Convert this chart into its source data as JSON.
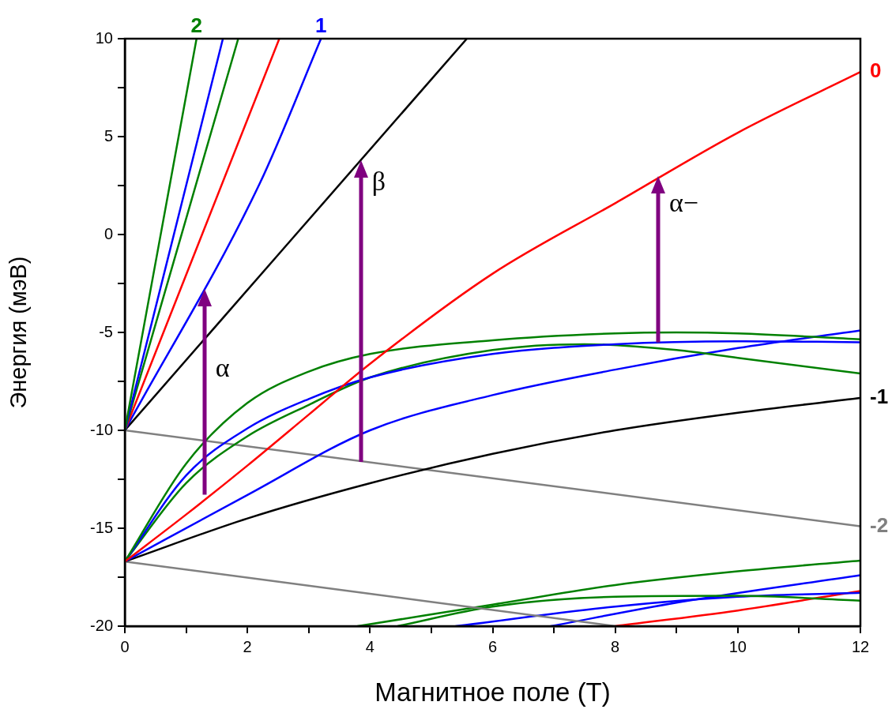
{
  "chart_data": {
    "type": "line",
    "xlabel": "Магнитное поле (Т)",
    "ylabel": "Энергия (мэВ)",
    "xlim": [
      0,
      12
    ],
    "ylim": [
      -20,
      10
    ],
    "xticks": [
      0,
      {
        "value": 1,
        "label": null
      },
      2,
      {
        "value": 3,
        "label": null
      },
      4,
      {
        "value": 5,
        "label": null
      },
      6,
      {
        "value": 7,
        "label": null
      },
      8,
      {
        "value": 9,
        "label": null
      },
      10,
      {
        "value": 11,
        "label": null
      },
      12
    ],
    "yticks": [
      -20,
      {
        "value": -17.5,
        "label": null
      },
      -15,
      {
        "value": -12.5,
        "label": null
      },
      -10,
      {
        "value": -7.5,
        "label": null
      },
      -5,
      {
        "value": -2.5,
        "label": null
      },
      0,
      {
        "value": 2.5,
        "label": null
      },
      5,
      {
        "value": 7.5,
        "label": null
      },
      10
    ],
    "grid": false,
    "legend": false,
    "marker": "none",
    "line_style": "solid",
    "annotations": [
      {
        "text": "α",
        "x": 1.3,
        "y": -2.8
      },
      {
        "text": "β",
        "x": 3.85,
        "y": 3.8
      },
      {
        "text": "α−",
        "x": 8.7,
        "y": 3
      }
    ],
    "series": [
      {
        "name": "2",
        "color": "#008000",
        "x": [
          0,
          1.17
        ],
        "values": [
          -10,
          10
        ]
      },
      {
        "color": "#0000ff",
        "x": [
          0,
          1.6
        ],
        "values": [
          -10,
          10
        ]
      },
      {
        "color": "#008000",
        "x": [
          0,
          1.85
        ],
        "values": [
          -10,
          10
        ]
      },
      {
        "color": "#ff0000",
        "x": [
          0,
          2.52
        ],
        "values": [
          -10,
          10
        ]
      },
      {
        "name": "1",
        "color": "#0000ff",
        "x": [
          0,
          2.2,
          3.2
        ],
        "values": [
          -10,
          2.6,
          10
        ]
      },
      {
        "color": "#000000",
        "x": [
          0,
          5.58
        ],
        "values": [
          -10,
          10
        ]
      },
      {
        "name": "0",
        "color": "#ff0000",
        "x": [
          0,
          1,
          2,
          3,
          4,
          6,
          8,
          10,
          12
        ],
        "values": [
          -16.7,
          -14.3,
          -11.8,
          -9.2,
          -6.6,
          -2,
          1.6,
          5.2,
          8.3
        ]
      },
      {
        "color": "#008000",
        "x": [
          0,
          1,
          2,
          3,
          4,
          6,
          8,
          9,
          10,
          12
        ],
        "values": [
          -16.7,
          -11.7,
          -8.6,
          -7,
          -6.1,
          -5.4,
          -5.05,
          -5,
          -5.05,
          -5.35
        ]
      },
      {
        "color": "#0000ff",
        "x": [
          0,
          1,
          2,
          3,
          4,
          6,
          8,
          10,
          12
        ],
        "values": [
          -16.7,
          -12.3,
          -9.9,
          -8.4,
          -7.3,
          -6.1,
          -5.6,
          -5.45,
          -5.5
        ]
      },
      {
        "color": "#008000",
        "x": [
          0,
          1,
          2,
          3,
          4,
          6,
          7.5,
          9,
          10,
          12
        ],
        "values": [
          -16.7,
          -12.7,
          -10.3,
          -8.7,
          -7.3,
          -5.9,
          -5.6,
          -5.9,
          -6.3,
          -7.1
        ]
      },
      {
        "color": "#0000ff",
        "x": [
          0,
          2,
          4,
          6,
          8,
          10,
          12
        ],
        "values": [
          -16.7,
          -13.3,
          -10,
          -8.2,
          -6.9,
          -5.8,
          -4.9
        ]
      },
      {
        "name": "-1",
        "color": "#000000",
        "x": [
          0,
          2,
          4,
          6,
          8,
          10,
          12
        ],
        "values": [
          -16.7,
          -14.5,
          -12.7,
          -11.2,
          -10,
          -9.1,
          -8.35
        ]
      },
      {
        "name": "-2",
        "color": "#808080",
        "x": [
          0,
          12
        ],
        "values": [
          -10,
          -14.9
        ]
      },
      {
        "color": "#808080",
        "x": [
          0,
          8
        ],
        "values": [
          -16.7,
          -20
        ]
      },
      {
        "color": "#008000",
        "x": [
          3.8,
          6,
          8,
          10,
          12
        ],
        "values": [
          -20,
          -18.9,
          -17.9,
          -17.2,
          -16.65
        ]
      },
      {
        "color": "#008000",
        "x": [
          4.45,
          6,
          8,
          10,
          12
        ],
        "values": [
          -20,
          -19,
          -18.5,
          -18.45,
          -18.7
        ]
      },
      {
        "color": "#0000ff",
        "x": [
          5.4,
          8,
          10,
          12
        ],
        "values": [
          -20,
          -19,
          -18.5,
          -18.3
        ]
      },
      {
        "color": "#0000ff",
        "x": [
          6.95,
          9,
          12
        ],
        "values": [
          -20,
          -18.8,
          -17.4
        ]
      },
      {
        "color": "#ff0000",
        "x": [
          8,
          10,
          12
        ],
        "values": [
          -20,
          -19.2,
          -18.2
        ]
      }
    ]
  }
}
